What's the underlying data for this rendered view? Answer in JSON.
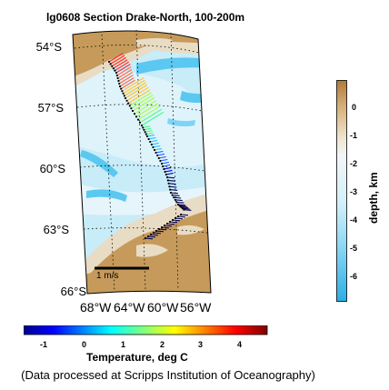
{
  "title": "lg0608 Section Drake-North, 100-200m",
  "map": {
    "lat_labels": [
      "54°S",
      "57°S",
      "60°S",
      "63°S",
      "66°S"
    ],
    "lon_labels": [
      "68°W",
      "64°W",
      "60°W",
      "56°W"
    ],
    "scale_label": "1 m/s",
    "colors": {
      "land": "#c69a5a",
      "shelf": "#e8dcc4",
      "deep": "#c8ecf8",
      "trench": "#5ac8f0",
      "track": "#00005a"
    }
  },
  "temperature_colorbar": {
    "label": "Temperature, deg C",
    "ticks": [
      "-1",
      "0",
      "1",
      "2",
      "3",
      "4"
    ]
  },
  "depth_colorbar": {
    "label": "depth, km",
    "ticks": [
      "0",
      "-1",
      "-2",
      "-3",
      "-4",
      "-5",
      "-6"
    ]
  },
  "credit": "(Data processed at Scripps Institution of Oceanography)"
}
